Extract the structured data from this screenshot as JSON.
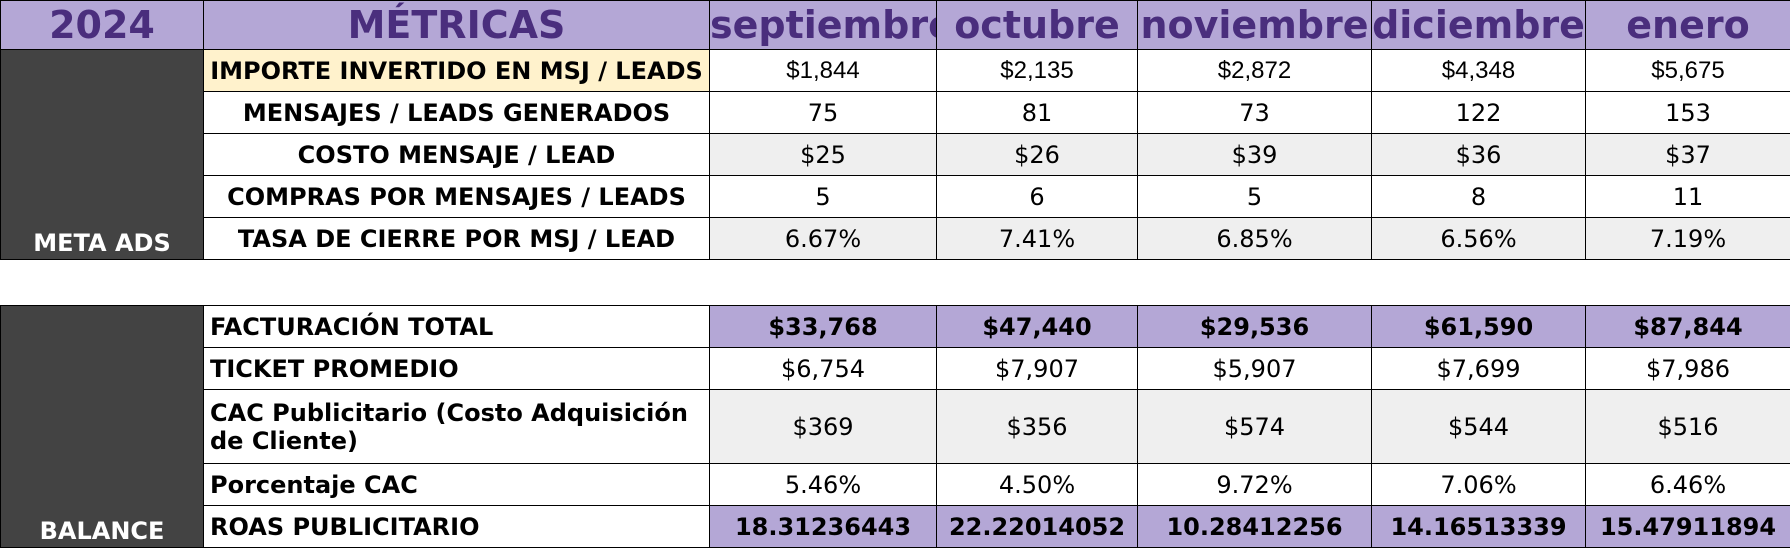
{
  "header": {
    "year": "2024",
    "metrics_title": "MÉTRICAS",
    "months": [
      "septiembre",
      "octubre",
      "noviembre",
      "diciembre",
      "enero"
    ]
  },
  "meta_ads": {
    "group_label": "META ADS",
    "rows": [
      {
        "label": "IMPORTE INVERTIDO EN MSJ / LEADS",
        "values": [
          "$1,844",
          "$2,135",
          "$2,872",
          "$4,348",
          "$5,675"
        ]
      },
      {
        "label": "MENSAJES / LEADS GENERADOS",
        "values": [
          "75",
          "81",
          "73",
          "122",
          "153"
        ]
      },
      {
        "label": "COSTO MENSAJE / LEAD",
        "values": [
          "$25",
          "$26",
          "$39",
          "$36",
          "$37"
        ]
      },
      {
        "label": "COMPRAS POR MENSAJES / LEADS",
        "values": [
          "5",
          "6",
          "5",
          "8",
          "11"
        ]
      },
      {
        "label": "TASA DE CIERRE POR MSJ / LEAD",
        "values": [
          "6.67%",
          "7.41%",
          "6.85%",
          "6.56%",
          "7.19%"
        ]
      }
    ]
  },
  "balance": {
    "group_label": "BALANCE",
    "rows": [
      {
        "label": "FACTURACIÓN TOTAL",
        "values": [
          "$33,768",
          "$47,440",
          "$29,536",
          "$61,590",
          "$87,844"
        ]
      },
      {
        "label": "TICKET PROMEDIO",
        "values": [
          "$6,754",
          "$7,907",
          "$5,907",
          "$7,699",
          "$7,986"
        ]
      },
      {
        "label": "CAC Publicitario (Costo Adquisición de Cliente)",
        "values": [
          "$369",
          "$356",
          "$574",
          "$544",
          "$516"
        ]
      },
      {
        "label": "Porcentaje CAC",
        "values": [
          "5.46%",
          "4.50%",
          "9.72%",
          "7.06%",
          "6.46%"
        ]
      },
      {
        "label": "ROAS PUBLICITARIO",
        "values": [
          "18.31236443",
          "22.22014052",
          "10.28412256",
          "14.16513339",
          "15.47911894"
        ]
      }
    ]
  },
  "colors": {
    "header_bg": "#b4a7d6",
    "header_text": "#4a2e7d",
    "group_bg": "#434343",
    "highlight_label": "#fff2cc",
    "grey_cell": "#efefef"
  }
}
